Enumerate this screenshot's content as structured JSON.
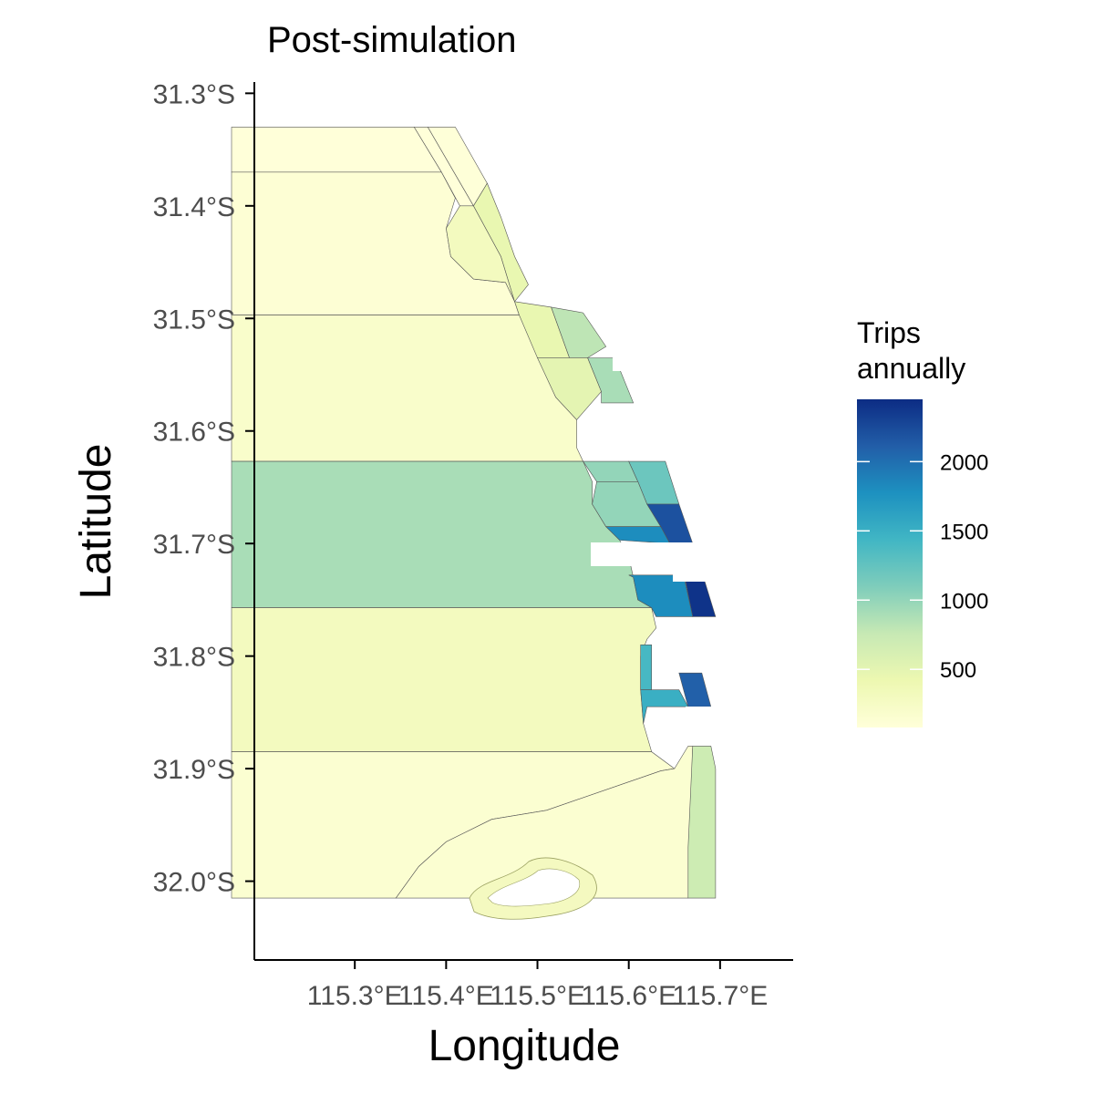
{
  "chart_data": {
    "type": "choropleth",
    "title": "Post-simulation",
    "xlabel": "Longitude",
    "ylabel": "Latitude",
    "x_ticks": [
      {
        "value": 115.3,
        "label": "115.3°E"
      },
      {
        "value": 115.4,
        "label": "115.4°E"
      },
      {
        "value": 115.5,
        "label": "115.5°E"
      },
      {
        "value": 115.6,
        "label": "115.6°E"
      },
      {
        "value": 115.7,
        "label": "115.7°E"
      }
    ],
    "y_ticks": [
      {
        "value": -31.3,
        "label": "31.3°S"
      },
      {
        "value": -31.4,
        "label": "31.4°S"
      },
      {
        "value": -31.5,
        "label": "31.5°S"
      },
      {
        "value": -31.6,
        "label": "31.6°S"
      },
      {
        "value": -31.7,
        "label": "31.7°S"
      },
      {
        "value": -31.8,
        "label": "31.8°S"
      },
      {
        "value": -31.9,
        "label": "31.9°S"
      },
      {
        "value": -32.0,
        "label": "32.0°S"
      }
    ],
    "xlim": [
      115.19,
      115.78
    ],
    "ylim": [
      -32.07,
      -31.29
    ],
    "grid": false,
    "legend": {
      "title_line1": "Trips",
      "title_line2": "annually",
      "placement": "right",
      "min": 80,
      "max": 2450,
      "ticks": [
        {
          "value": 500,
          "label": "500"
        },
        {
          "value": 1000,
          "label": "1000"
        },
        {
          "value": 1500,
          "label": "1500"
        },
        {
          "value": 2000,
          "label": "2000"
        }
      ],
      "colors": [
        "#ffffd9",
        "#edf8b1",
        "#c7e9b4",
        "#7fcdbb",
        "#41b6c4",
        "#1d91c0",
        "#225ea8",
        "#0c2c84"
      ]
    },
    "zones": [
      {
        "value": 80,
        "polygon": [
          [
            115.165,
            -31.33
          ],
          [
            115.365,
            -31.33
          ],
          [
            115.395,
            -31.37
          ],
          [
            115.165,
            -31.37
          ]
        ]
      },
      {
        "value": 120,
        "polygon": [
          [
            115.165,
            -31.37
          ],
          [
            115.395,
            -31.37
          ],
          [
            115.41,
            -31.393
          ],
          [
            115.4,
            -31.42
          ],
          [
            115.405,
            -31.445
          ],
          [
            115.43,
            -31.465
          ],
          [
            115.465,
            -31.468
          ],
          [
            115.475,
            -31.485
          ],
          [
            115.48,
            -31.497
          ],
          [
            115.165,
            -31.497
          ]
        ]
      },
      {
        "value": 200,
        "polygon": [
          [
            115.165,
            -31.497
          ],
          [
            115.48,
            -31.497
          ],
          [
            115.5,
            -31.52
          ],
          [
            115.51,
            -31.552
          ],
          [
            115.52,
            -31.57
          ],
          [
            115.543,
            -31.59
          ],
          [
            115.543,
            -31.615
          ],
          [
            115.55,
            -31.627
          ],
          [
            115.165,
            -31.627
          ]
        ]
      },
      {
        "value": 900,
        "polygon": [
          [
            115.165,
            -31.627
          ],
          [
            115.55,
            -31.627
          ],
          [
            115.56,
            -31.645
          ],
          [
            115.56,
            -31.665
          ],
          [
            115.575,
            -31.685
          ],
          [
            115.59,
            -31.697
          ],
          [
            115.6,
            -31.712
          ],
          [
            115.605,
            -31.73
          ],
          [
            115.61,
            -31.75
          ],
          [
            115.625,
            -31.757
          ],
          [
            115.165,
            -31.757
          ]
        ]
      },
      {
        "value": 300,
        "polygon": [
          [
            115.165,
            -31.757
          ],
          [
            115.625,
            -31.757
          ],
          [
            115.63,
            -31.775
          ],
          [
            115.62,
            -31.785
          ],
          [
            115.613,
            -31.8
          ],
          [
            115.613,
            -31.83
          ],
          [
            115.616,
            -31.86
          ],
          [
            115.625,
            -31.885
          ],
          [
            115.165,
            -31.885
          ]
        ]
      },
      {
        "value": 150,
        "polygon": [
          [
            115.165,
            -31.885
          ],
          [
            115.625,
            -31.885
          ],
          [
            115.65,
            -31.9
          ],
          [
            115.635,
            -31.902
          ],
          [
            115.51,
            -31.937
          ],
          [
            115.45,
            -31.945
          ],
          [
            115.4,
            -31.965
          ],
          [
            115.37,
            -31.987
          ],
          [
            115.345,
            -32.015
          ],
          [
            115.165,
            -32.015
          ]
        ]
      },
      {
        "value": 150,
        "polygon": [
          [
            115.345,
            -32.015
          ],
          [
            115.37,
            -31.987
          ],
          [
            115.4,
            -31.965
          ],
          [
            115.45,
            -31.945
          ],
          [
            115.51,
            -31.937
          ],
          [
            115.635,
            -31.902
          ],
          [
            115.65,
            -31.9
          ],
          [
            115.665,
            -31.88
          ],
          [
            115.67,
            -31.88
          ],
          [
            115.665,
            -32.015
          ]
        ]
      },
      {
        "value": 700,
        "polygon": [
          [
            115.67,
            -31.88
          ],
          [
            115.69,
            -31.88
          ],
          [
            115.695,
            -31.9
          ],
          [
            115.695,
            -32.015
          ],
          [
            115.665,
            -32.015
          ],
          [
            115.665,
            -31.97
          ]
        ]
      },
      {
        "value": 80,
        "polygon": [
          [
            115.365,
            -31.33
          ],
          [
            115.38,
            -31.33
          ],
          [
            115.43,
            -31.4
          ],
          [
            115.415,
            -31.4
          ],
          [
            115.395,
            -31.37
          ]
        ]
      },
      {
        "value": 90,
        "polygon": [
          [
            115.38,
            -31.33
          ],
          [
            115.41,
            -31.33
          ],
          [
            115.445,
            -31.38
          ],
          [
            115.43,
            -31.4
          ]
        ]
      },
      {
        "value": 300,
        "polygon": [
          [
            115.415,
            -31.4
          ],
          [
            115.43,
            -31.4
          ],
          [
            115.46,
            -31.445
          ],
          [
            115.475,
            -31.485
          ],
          [
            115.465,
            -31.468
          ],
          [
            115.43,
            -31.465
          ],
          [
            115.405,
            -31.445
          ],
          [
            115.4,
            -31.42
          ]
        ]
      },
      {
        "value": 450,
        "polygon": [
          [
            115.43,
            -31.4
          ],
          [
            115.445,
            -31.38
          ],
          [
            115.46,
            -31.41
          ],
          [
            115.475,
            -31.445
          ],
          [
            115.49,
            -31.47
          ],
          [
            115.475,
            -31.485
          ],
          [
            115.46,
            -31.445
          ]
        ]
      },
      {
        "value": 450,
        "polygon": [
          [
            115.475,
            -31.485
          ],
          [
            115.515,
            -31.49
          ],
          [
            115.535,
            -31.535
          ],
          [
            115.5,
            -31.535
          ],
          [
            115.48,
            -31.497
          ]
        ]
      },
      {
        "value": 800,
        "polygon": [
          [
            115.515,
            -31.49
          ],
          [
            115.55,
            -31.495
          ],
          [
            115.575,
            -31.525
          ],
          [
            115.555,
            -31.535
          ],
          [
            115.535,
            -31.535
          ]
        ]
      },
      {
        "value": 500,
        "polygon": [
          [
            115.5,
            -31.535
          ],
          [
            115.555,
            -31.535
          ],
          [
            115.57,
            -31.565
          ],
          [
            115.543,
            -31.59
          ],
          [
            115.52,
            -31.57
          ]
        ]
      },
      {
        "value": 900,
        "polygon": [
          [
            115.555,
            -31.535
          ],
          [
            115.585,
            -31.535
          ],
          [
            115.605,
            -31.575
          ],
          [
            115.57,
            -31.575
          ],
          [
            115.57,
            -31.565
          ]
        ]
      },
      {
        "value": 1000,
        "polygon": [
          [
            115.55,
            -31.627
          ],
          [
            115.6,
            -31.627
          ],
          [
            115.61,
            -31.645
          ],
          [
            115.565,
            -31.645
          ]
        ]
      },
      {
        "value": 1200,
        "polygon": [
          [
            115.6,
            -31.627
          ],
          [
            115.64,
            -31.627
          ],
          [
            115.655,
            -31.665
          ],
          [
            115.62,
            -31.665
          ],
          [
            115.61,
            -31.645
          ]
        ]
      },
      {
        "value": 1000,
        "polygon": [
          [
            115.565,
            -31.645
          ],
          [
            115.61,
            -31.645
          ],
          [
            115.62,
            -31.665
          ],
          [
            115.635,
            -31.685
          ],
          [
            115.575,
            -31.685
          ],
          [
            115.56,
            -31.665
          ]
        ]
      },
      {
        "value": 2200,
        "polygon": [
          [
            115.62,
            -31.665
          ],
          [
            115.655,
            -31.665
          ],
          [
            115.67,
            -31.7
          ],
          [
            115.645,
            -31.7
          ],
          [
            115.635,
            -31.685
          ]
        ]
      },
      {
        "value": 1800,
        "polygon": [
          [
            115.575,
            -31.685
          ],
          [
            115.635,
            -31.685
          ],
          [
            115.645,
            -31.7
          ],
          [
            115.59,
            -31.697
          ]
        ]
      },
      {
        "value": 2400,
        "polygon": [
          [
            115.66,
            -31.725
          ],
          [
            115.68,
            -31.725
          ],
          [
            115.695,
            -31.765
          ],
          [
            115.67,
            -31.765
          ]
        ]
      },
      {
        "value": 1800,
        "polygon": [
          [
            115.6,
            -31.728
          ],
          [
            115.66,
            -31.728
          ],
          [
            115.67,
            -31.765
          ],
          [
            115.63,
            -31.765
          ],
          [
            115.625,
            -31.757
          ],
          [
            115.61,
            -31.75
          ],
          [
            115.605,
            -31.73
          ]
        ]
      },
      {
        "value": 1400,
        "polygon": [
          [
            115.613,
            -31.79
          ],
          [
            115.625,
            -31.79
          ],
          [
            115.625,
            -31.83
          ],
          [
            115.613,
            -31.83
          ]
        ]
      },
      {
        "value": 1500,
        "polygon": [
          [
            115.613,
            -31.83
          ],
          [
            115.655,
            -31.83
          ],
          [
            115.665,
            -31.845
          ],
          [
            115.62,
            -31.845
          ],
          [
            115.616,
            -31.86
          ]
        ]
      },
      {
        "value": 2100,
        "polygon": [
          [
            115.655,
            -31.815
          ],
          [
            115.68,
            -31.815
          ],
          [
            115.69,
            -31.845
          ],
          [
            115.665,
            -31.845
          ]
        ]
      }
    ]
  }
}
